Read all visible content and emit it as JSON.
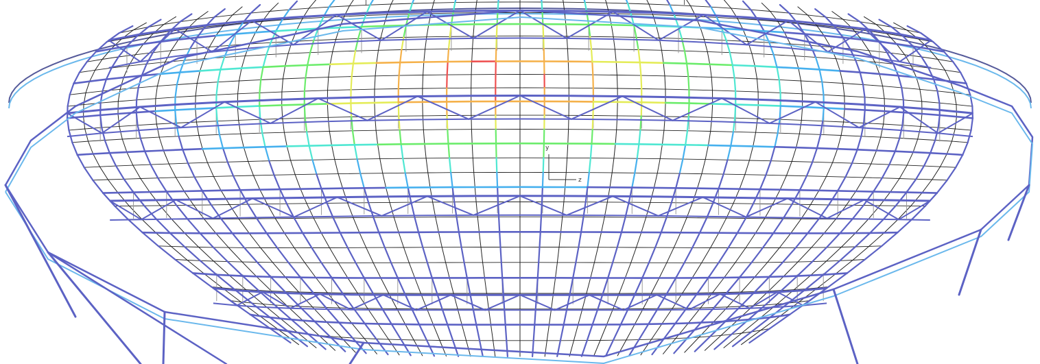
{
  "viewport": {
    "background": "#ffffff",
    "axis_triad": {
      "labels": [
        "y",
        "z"
      ]
    }
  },
  "colors": {
    "frame": "#5c62c4",
    "deck_line": "#222222",
    "post": "#9a9a9a",
    "contour_scale": [
      "#5c62c4",
      "#46b0ee",
      "#4fe7d2",
      "#6bec6b",
      "#e4ec58",
      "#f5b14a",
      "#ee5050"
    ]
  },
  "icons": {
    "axis_triad": "axis-triad-icon"
  }
}
